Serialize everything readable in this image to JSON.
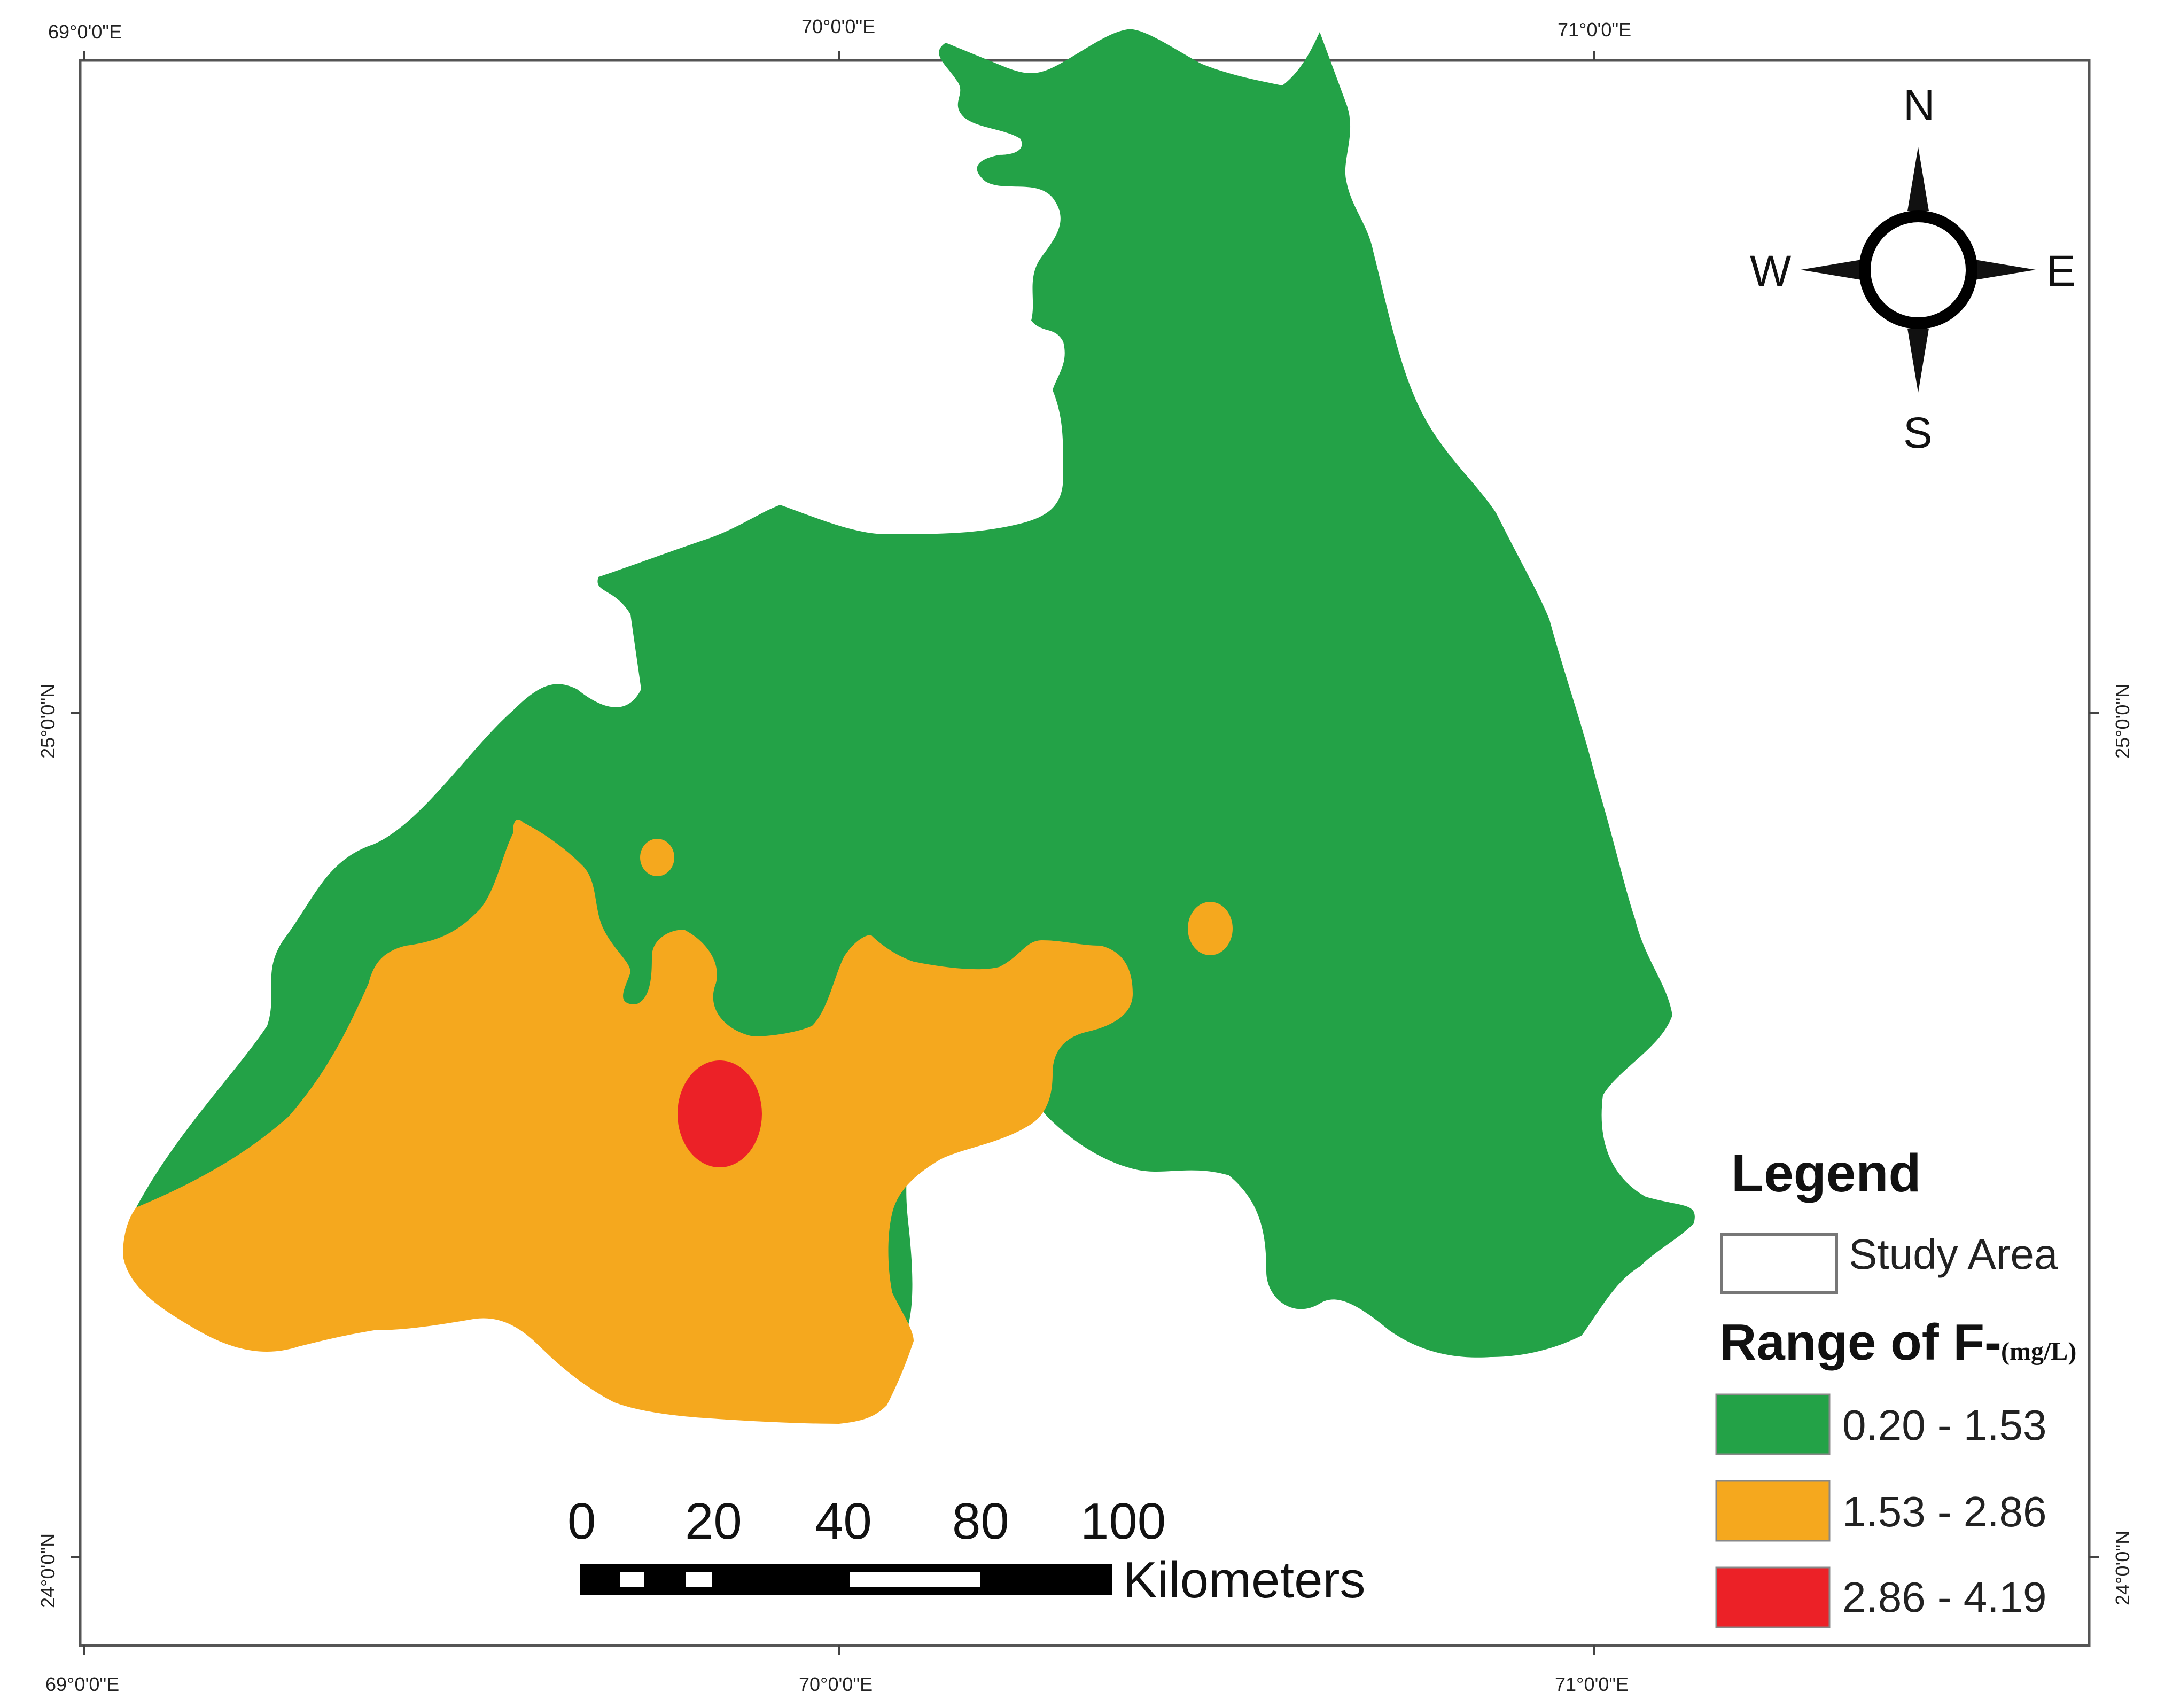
{
  "graticule": {
    "top_lon": [
      "69°0'0\"E",
      "70°0'0\"E",
      "71°0'0\"E"
    ],
    "bottom_lon": [
      "69°0'0\"E",
      "70°0'0\"E",
      "71°0'0\"E"
    ],
    "left_lat": [
      "25°0'0\"N",
      "24°0'0\"N"
    ],
    "right_lat": [
      "25°0'0\"N",
      "24°0'0\"N"
    ]
  },
  "compass": {
    "north": "N",
    "south": "S",
    "east": "E",
    "west": "W"
  },
  "legend": {
    "title": "Legend",
    "study_area_label": "Study Area",
    "range_title": "Range of F-",
    "range_unit": "(mg/L)",
    "classes": [
      {
        "label": "0.20 - 1.53",
        "color": "#23a247"
      },
      {
        "label": "1.53 - 2.86",
        "color": "#f5a81e"
      },
      {
        "label": "2.86 - 4.19",
        "color": "#ec2127"
      }
    ]
  },
  "scale_bar": {
    "ticks": [
      "0",
      "20",
      "40",
      "80",
      "100"
    ],
    "unit": "Kilometers"
  },
  "colors": {
    "low": "#23a247",
    "medium": "#f5a81e",
    "high": "#ec2127",
    "frame": "#555555"
  }
}
